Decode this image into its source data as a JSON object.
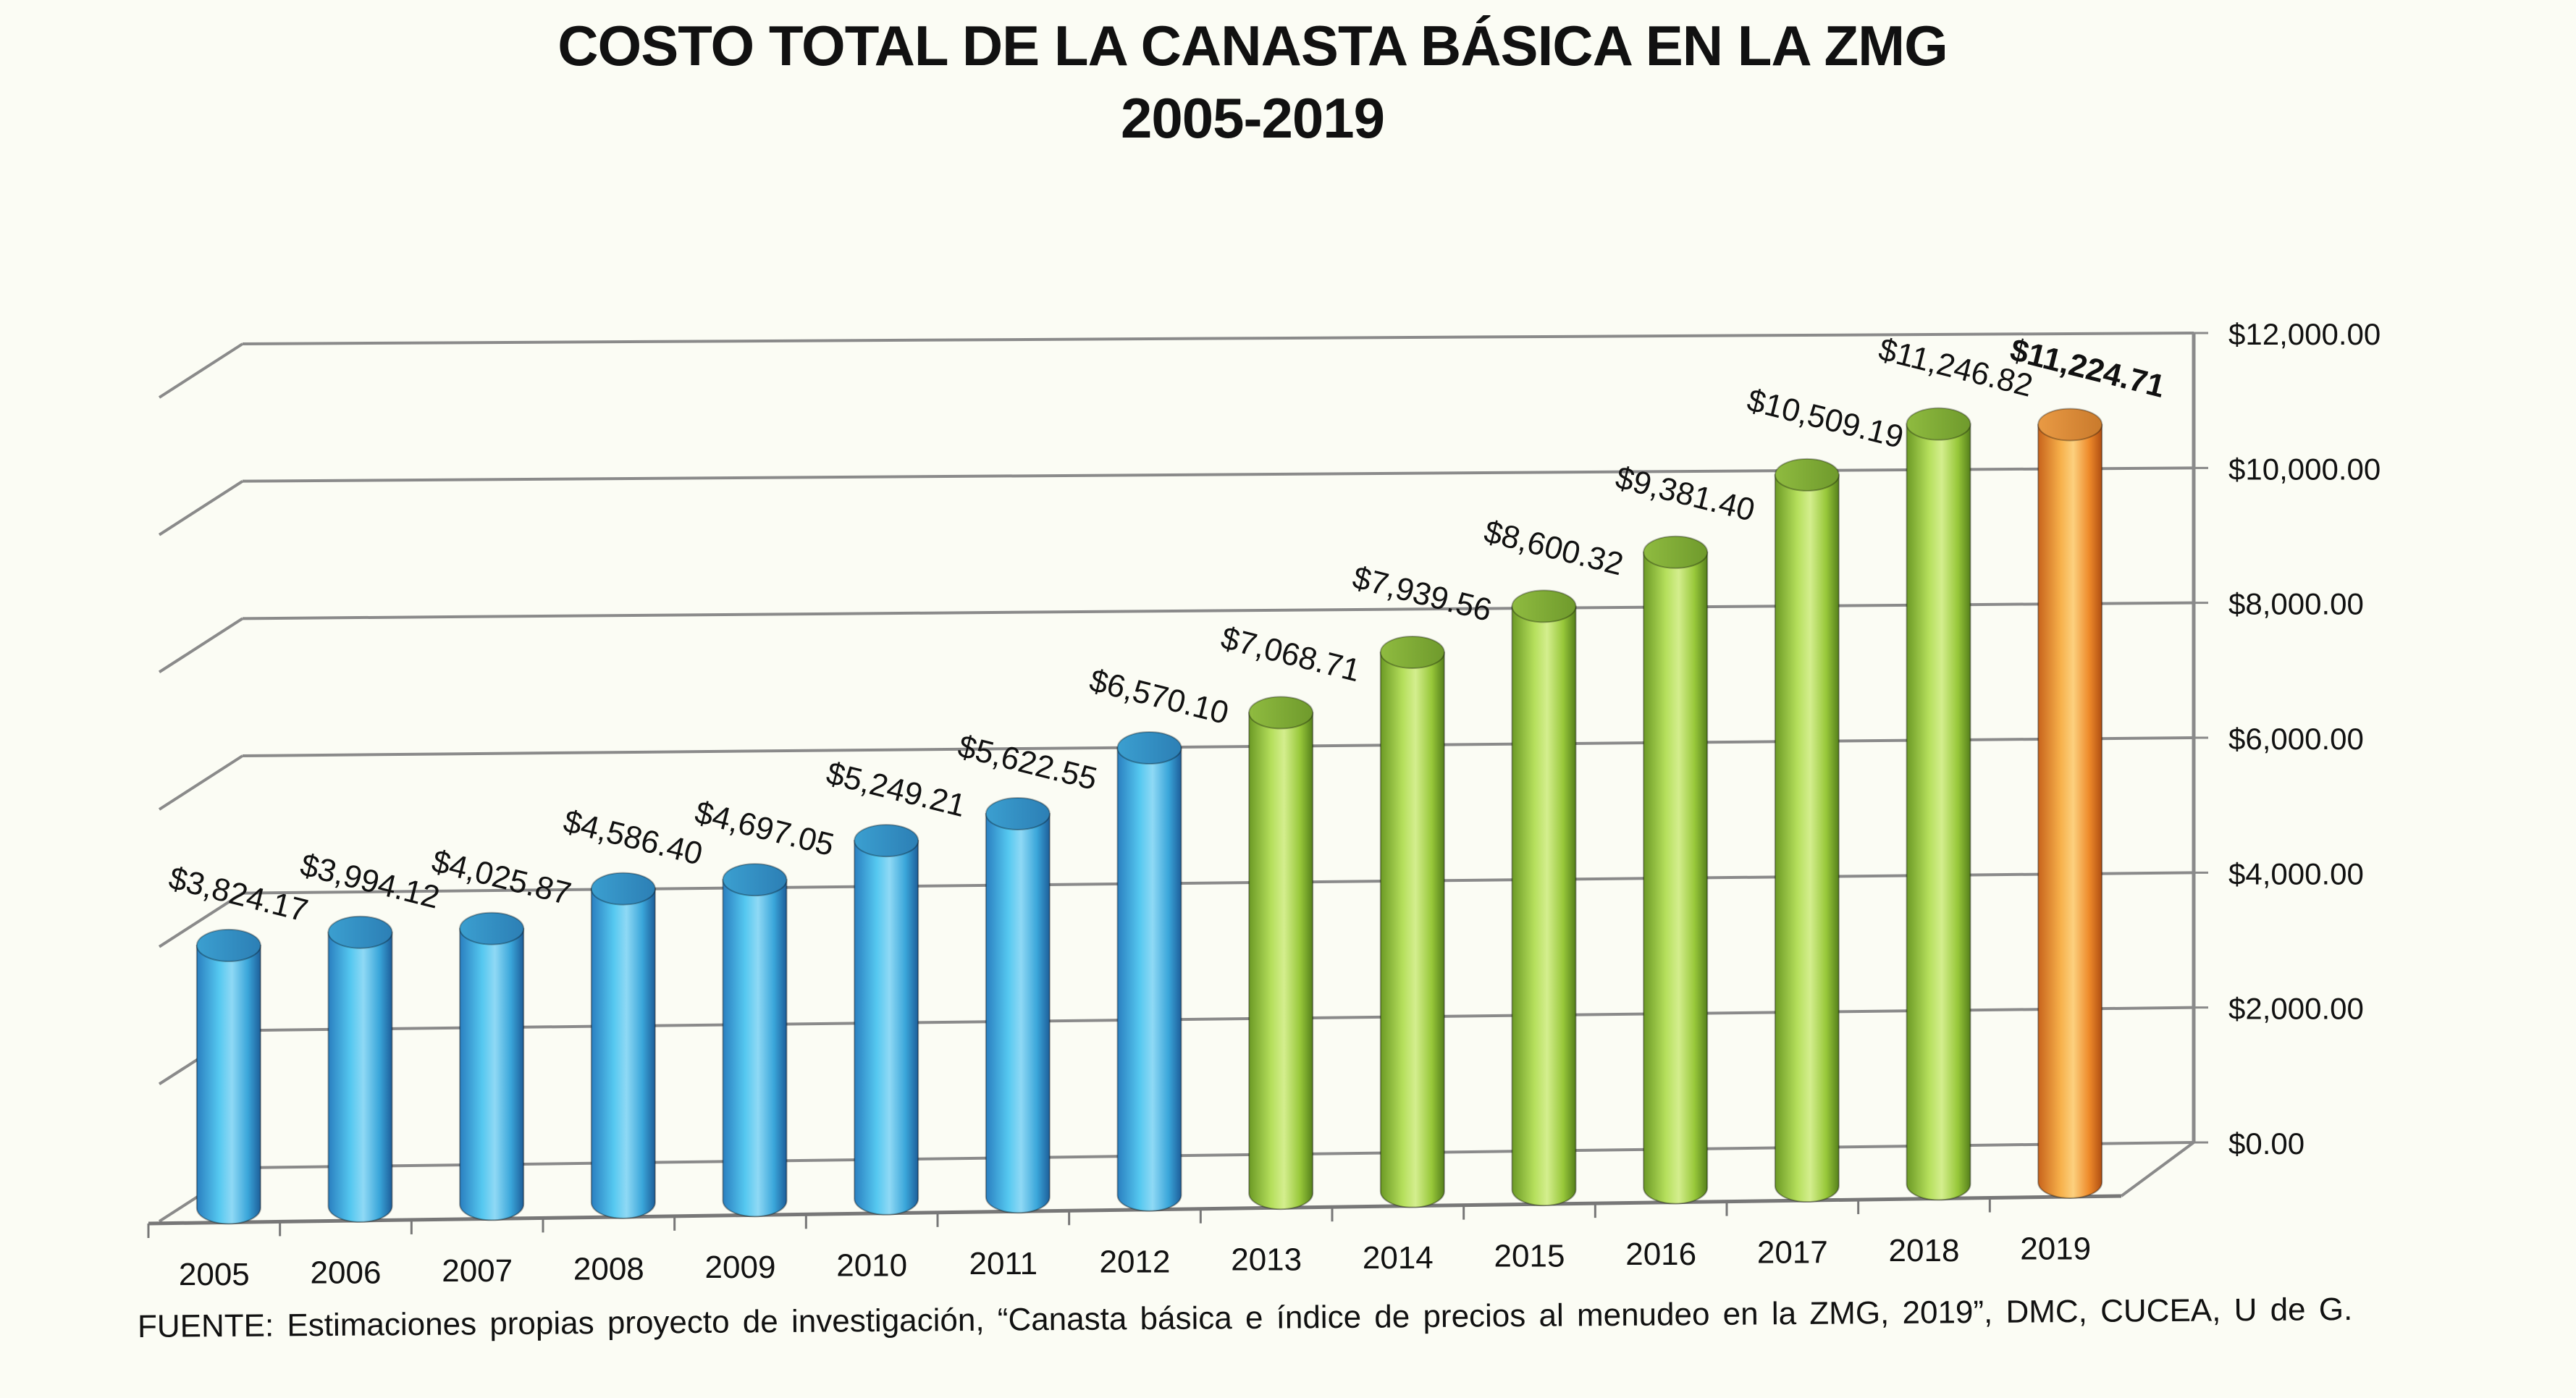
{
  "chart_data": {
    "type": "bar",
    "title": "COSTO TOTAL DE LA CANASTA BÁSICA EN LA ZMG",
    "subtitle": "2005-2019",
    "xlabel": "",
    "ylabel": "",
    "categories": [
      "2005",
      "2006",
      "2007",
      "2008",
      "2009",
      "2010",
      "2011",
      "2012",
      "2013",
      "2014",
      "2015",
      "2016",
      "2017",
      "2018",
      "2019"
    ],
    "values": [
      3824.17,
      3994.12,
      4025.87,
      4586.4,
      4697.05,
      5249.21,
      5622.55,
      6570.1,
      7068.71,
      7939.56,
      8600.32,
      9381.4,
      10509.19,
      11246.82,
      11224.71
    ],
    "data_labels": [
      "$3,824.17",
      "$3,994.12",
      "$4,025.87",
      "$4,586.40",
      "$4,697.05",
      "$5,249.21",
      "$5,622.55",
      "$6,570.10",
      "$7,068.71",
      "$7,939.56",
      "$8,600.32",
      "$9,381.40",
      "$10,509.19",
      "$11,246.82",
      "$11,224.71"
    ],
    "bar_groups": [
      "blue",
      "blue",
      "blue",
      "blue",
      "blue",
      "blue",
      "blue",
      "blue",
      "green",
      "green",
      "green",
      "green",
      "green",
      "green",
      "orange"
    ],
    "colors": {
      "blue": "#3fb3e6",
      "green": "#9ccf3c",
      "orange": "#f39a2e"
    },
    "highlight_index": 14,
    "ylim": [
      0,
      12000
    ],
    "yticks": [
      0,
      2000,
      4000,
      6000,
      8000,
      10000,
      12000
    ],
    "ytick_labels": [
      "$0.00",
      "$2,000.00",
      "$4,000.00",
      "$6,000.00",
      "$8,000.00",
      "$10,000.00",
      "$12,000.00"
    ],
    "y_axis_side": "right",
    "grid": true,
    "style": "3d-cylinder",
    "legend": "none"
  },
  "footer": {
    "source": "FUENTE: Estimaciones  propias proyecto de investigación, “Canasta básica e índice de precios al menudeo en la ZMG, 2019”, DMC, CUCEA, U de G."
  }
}
